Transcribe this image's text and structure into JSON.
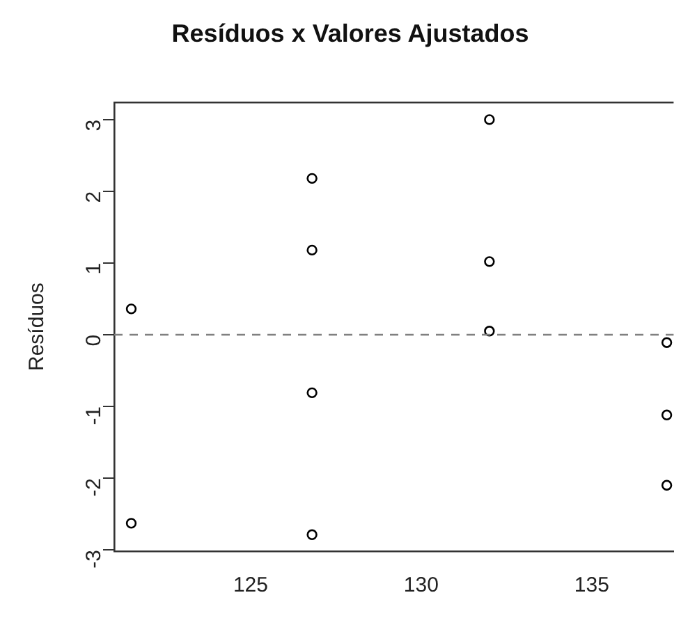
{
  "chart_data": {
    "type": "scatter",
    "title": "Resíduos x Valores Ajustados",
    "ylabel": "Resíduos",
    "x": [
      121.5,
      121.5,
      126.8,
      126.8,
      126.8,
      126.8,
      132.0,
      132.0,
      132.0,
      137.2,
      137.2,
      137.2
    ],
    "values": [
      0.36,
      -2.63,
      2.18,
      1.18,
      -0.81,
      -2.79,
      3.0,
      1.02,
      0.05,
      -0.11,
      -1.12,
      -2.1
    ],
    "color": "#000000",
    "marker": "circle",
    "grid": false,
    "xlim": [
      121.0,
      137.4
    ],
    "xticks": [
      125,
      130,
      135
    ],
    "ylim": [
      -3.02,
      3.24
    ],
    "yticks": [
      -3,
      -2,
      -1,
      0,
      1,
      2,
      3
    ],
    "ref_lines": [
      {
        "axis": "y",
        "value": 0,
        "color": "#808080",
        "line_style": "dashed"
      }
    ]
  }
}
